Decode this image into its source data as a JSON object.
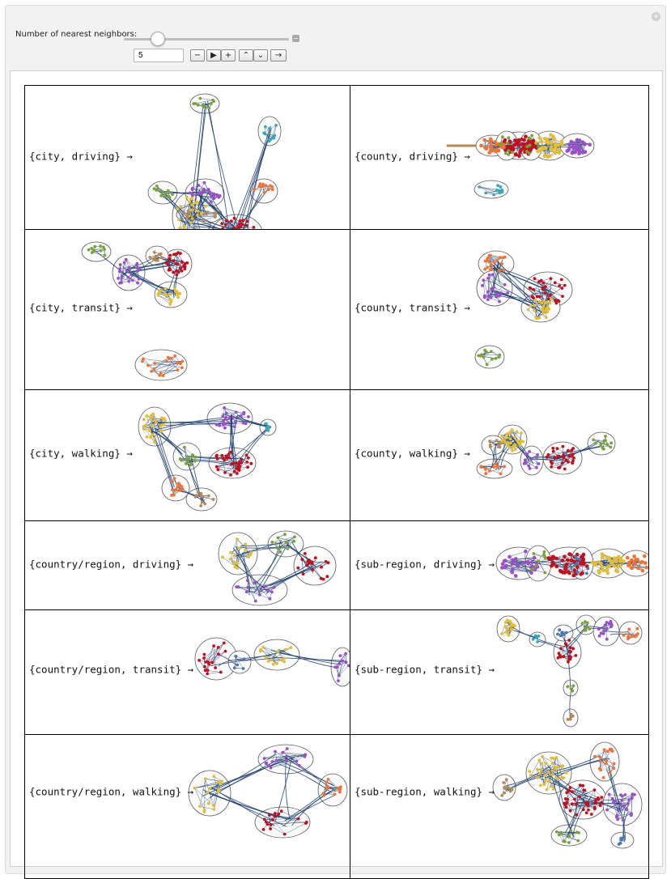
{
  "controls": {
    "slider_label": "Number of nearest neighbors:",
    "slider_value": 5,
    "slider_min": 0,
    "slider_max": 30,
    "value_field": "5",
    "buttons": [
      {
        "name": "decrement-button",
        "glyph": "−"
      },
      {
        "name": "play-button",
        "glyph": "▶"
      },
      {
        "name": "increment-button",
        "glyph": "+"
      },
      {
        "name": "faster-button",
        "glyph": "⌃"
      },
      {
        "name": "slower-button",
        "glyph": "⌄"
      },
      {
        "name": "direction-button",
        "glyph": "→"
      }
    ]
  },
  "colors": {
    "red": "#c0101e",
    "purple": "#9a4fc8",
    "yellow": "#e2be35",
    "green": "#7aa23a",
    "orange": "#ef7333",
    "teal": "#35a9b8",
    "tan": "#b58a55",
    "blue": "#4a78b0",
    "edge": "#1f3f6e",
    "hull": "#5a5a5a",
    "hull_fill": "#fbfbfb"
  },
  "rows": [
    {
      "left": {
        "label": "{city, driving} →",
        "name": "city-driving"
      },
      "right": {
        "label": "{county, driving} →",
        "name": "county-driving"
      }
    },
    {
      "left": {
        "label": "{city, transit} →",
        "name": "city-transit"
      },
      "right": {
        "label": "{county, transit} →",
        "name": "county-transit"
      }
    },
    {
      "left": {
        "label": "{city, walking} →",
        "name": "city-walking"
      },
      "right": {
        "label": "{county, walking} →",
        "name": "county-walking"
      }
    },
    {
      "left": {
        "label": "{country/region, driving} →",
        "name": "country-region-driving"
      },
      "right": {
        "label": "{sub-region, driving} →",
        "name": "sub-region-driving"
      }
    },
    {
      "left": {
        "label": "{country/region, transit} →",
        "name": "country-region-transit"
      },
      "right": {
        "label": "{sub-region, transit} →",
        "name": "sub-region-transit"
      }
    },
    {
      "left": {
        "label": "{country/region, walking} →",
        "name": "country-region-walking"
      },
      "right": {
        "label": "{sub-region, walking} →",
        "name": "sub-region-walking"
      }
    }
  ]
}
